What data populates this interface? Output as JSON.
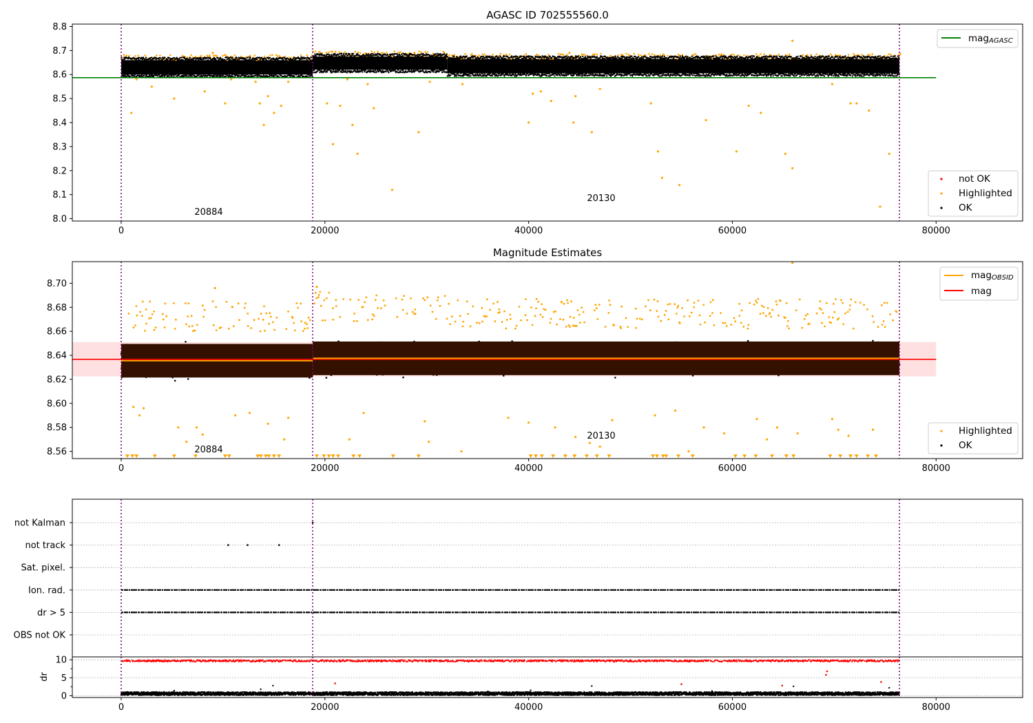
{
  "chart_data": [
    {
      "type": "scatter",
      "title": "AGASC ID 702555560.0",
      "xlim": [
        -4800,
        88500
      ],
      "ylim": [
        7.99,
        8.81
      ],
      "xticks": [
        "0",
        "20000",
        "40000",
        "60000",
        "80000"
      ],
      "yticks": [
        "8.0",
        "8.1",
        "8.2",
        "8.3",
        "8.4",
        "8.5",
        "8.6",
        "8.7",
        "8.8"
      ],
      "obs_boundaries": [
        0,
        18800,
        76400
      ],
      "segment_labels": [
        {
          "text": "20884",
          "x": 9400,
          "y": 8.01
        },
        {
          "text": "20130",
          "x": 47600,
          "y": 8.07
        }
      ],
      "hline": {
        "name": "mag_AGASC",
        "y": 8.587,
        "x": [
          -4800,
          80000
        ],
        "color": "#008000"
      },
      "bands": [
        {
          "x": [
            0,
            18800
          ],
          "ymin": 8.6,
          "ymax": 8.66
        },
        {
          "x": [
            18800,
            32000
          ],
          "ymin": 8.62,
          "ymax": 8.675
        },
        {
          "x": [
            32000,
            76400
          ],
          "ymin": 8.605,
          "ymax": 8.665
        }
      ],
      "highlighted_points": [
        [
          1000,
          8.44
        ],
        [
          1500,
          8.58
        ],
        [
          3000,
          8.55
        ],
        [
          5200,
          8.5
        ],
        [
          8200,
          8.53
        ],
        [
          10200,
          8.48
        ],
        [
          10800,
          8.58
        ],
        [
          13200,
          8.57
        ],
        [
          13600,
          8.48
        ],
        [
          14000,
          8.39
        ],
        [
          14400,
          8.51
        ],
        [
          15000,
          8.44
        ],
        [
          15700,
          8.47
        ],
        [
          16400,
          8.57
        ],
        [
          20200,
          8.48
        ],
        [
          20800,
          8.31
        ],
        [
          21500,
          8.47
        ],
        [
          22200,
          8.58
        ],
        [
          22700,
          8.39
        ],
        [
          23200,
          8.27
        ],
        [
          24200,
          8.56
        ],
        [
          24800,
          8.46
        ],
        [
          26600,
          8.12
        ],
        [
          29200,
          8.36
        ],
        [
          30300,
          8.57
        ],
        [
          33500,
          8.56
        ],
        [
          40000,
          8.4
        ],
        [
          40400,
          8.52
        ],
        [
          41200,
          8.53
        ],
        [
          42200,
          8.49
        ],
        [
          44400,
          8.4
        ],
        [
          44600,
          8.51
        ],
        [
          46200,
          8.36
        ],
        [
          47000,
          8.54
        ],
        [
          52000,
          8.48
        ],
        [
          52700,
          8.28
        ],
        [
          53100,
          8.17
        ],
        [
          54800,
          8.14
        ],
        [
          57400,
          8.41
        ],
        [
          60400,
          8.28
        ],
        [
          61600,
          8.47
        ],
        [
          62800,
          8.44
        ],
        [
          65200,
          8.27
        ],
        [
          65900,
          8.21
        ],
        [
          69800,
          8.56
        ],
        [
          71600,
          8.48
        ],
        [
          72200,
          8.48
        ],
        [
          73400,
          8.45
        ],
        [
          74500,
          8.05
        ],
        [
          75400,
          8.27
        ],
        [
          65900,
          8.74
        ],
        [
          28800,
          8.69
        ],
        [
          9000,
          8.69
        ],
        [
          44000,
          8.69
        ]
      ],
      "legend": {
        "lines": [
          "mag_AGASC"
        ],
        "markers": [
          "not OK",
          "Highlighted",
          "OK"
        ]
      },
      "colors": {
        "ok": "#000000",
        "highlighted": "#FFA500",
        "not_ok": "#FF0000",
        "agasc_line": "#008000"
      }
    },
    {
      "type": "scatter",
      "title": "Magnitude Estimates",
      "xlim": [
        -4800,
        88500
      ],
      "ylim": [
        8.554,
        8.718
      ],
      "xticks": [
        "0",
        "20000",
        "40000",
        "60000",
        "80000"
      ],
      "yticks": [
        "8.56",
        "8.58",
        "8.60",
        "8.62",
        "8.64",
        "8.66",
        "8.68",
        "8.70"
      ],
      "obs_boundaries": [
        0,
        18800,
        76400
      ],
      "segment_labels": [
        {
          "text": "20884",
          "x": 9400,
          "y": 8.558
        },
        {
          "text": "20130",
          "x": 47600,
          "y": 8.571
        }
      ],
      "mag_line": {
        "name": "mag",
        "y": 8.6367,
        "x": [
          -4800,
          80000
        ],
        "band": [
          8.6225,
          8.651
        ],
        "color": "#FF0000"
      },
      "mag_obsid": [
        {
          "x": [
            0,
            18800
          ],
          "y": 8.6355
        },
        {
          "x": [
            18800,
            76400
          ],
          "y": 8.6375
        }
      ],
      "dark_bands": [
        {
          "x": [
            0,
            18800
          ],
          "ymin": 8.6215,
          "ymax": 8.6495
        },
        {
          "x": [
            18800,
            76400
          ],
          "ymin": 8.6235,
          "ymax": 8.6515
        }
      ],
      "highlighted_points": [
        [
          1200,
          8.597
        ],
        [
          1800,
          8.59
        ],
        [
          2200,
          8.596
        ],
        [
          5600,
          8.58
        ],
        [
          6400,
          8.568
        ],
        [
          7400,
          8.58
        ],
        [
          8000,
          8.574
        ],
        [
          11200,
          8.59
        ],
        [
          12600,
          8.592
        ],
        [
          14400,
          8.583
        ],
        [
          16000,
          8.57
        ],
        [
          16400,
          8.588
        ],
        [
          22400,
          8.57
        ],
        [
          23800,
          8.592
        ],
        [
          29800,
          8.585
        ],
        [
          30200,
          8.568
        ],
        [
          33400,
          8.56
        ],
        [
          38000,
          8.588
        ],
        [
          40000,
          8.584
        ],
        [
          42600,
          8.58
        ],
        [
          44600,
          8.572
        ],
        [
          46000,
          8.567
        ],
        [
          47000,
          8.564
        ],
        [
          48200,
          8.586
        ],
        [
          52400,
          8.59
        ],
        [
          54400,
          8.594
        ],
        [
          55700,
          8.56
        ],
        [
          57200,
          8.58
        ],
        [
          59200,
          8.575
        ],
        [
          62400,
          8.587
        ],
        [
          63400,
          8.57
        ],
        [
          64400,
          8.58
        ],
        [
          66400,
          8.575
        ],
        [
          69800,
          8.587
        ],
        [
          70400,
          8.578
        ],
        [
          71400,
          8.573
        ],
        [
          73800,
          8.578
        ],
        [
          65900,
          8.717
        ],
        [
          19200,
          8.697
        ],
        [
          9200,
          8.696
        ]
      ],
      "clipped_low_x": [
        600,
        1100,
        1500,
        3300,
        5200,
        7300,
        10200,
        10600,
        13400,
        13700,
        14200,
        14500,
        15000,
        15500,
        19200,
        19900,
        20400,
        20800,
        21300,
        22800,
        23400,
        26700,
        29200,
        40200,
        40700,
        41300,
        42400,
        43600,
        44500,
        45700,
        46700,
        47900,
        52200,
        52600,
        53200,
        53500,
        54700,
        56100,
        60300,
        61200,
        62300,
        63900,
        65300,
        66000,
        69600,
        70600,
        71600,
        72200,
        73300,
        74100
      ],
      "legend": {
        "lines": [
          "mag_OBSID",
          "mag"
        ],
        "markers": [
          "Highlighted",
          "OK"
        ]
      },
      "colors": {
        "ok": "#000000",
        "highlighted": "#FFA500",
        "mag_obsid": "#FFA500",
        "mag": "#FF0000",
        "dark_band": "#331000"
      }
    },
    {
      "type": "scatter",
      "title": "",
      "xlim": [
        -4800,
        88500
      ],
      "xticks": [
        "0",
        "20000",
        "40000",
        "60000",
        "80000"
      ],
      "obs_boundaries": [
        0,
        18800,
        76400
      ],
      "categories": [
        "not Kalman",
        "not track",
        "Sat. pixel.",
        "Ion. rad.",
        "dr > 5",
        "OBS not OK"
      ],
      "flag_rows": [
        {
          "label": "not Kalman",
          "x": [
            18800
          ]
        },
        {
          "label": "not track",
          "x": [
            10500,
            12400,
            15500
          ]
        },
        {
          "label": "Sat. pixel.",
          "x": []
        },
        {
          "label": "Ion. rad.",
          "ranges": [
            [
              0,
              76400
            ]
          ]
        },
        {
          "label": "dr > 5",
          "ranges": [
            [
              0,
              76400
            ]
          ]
        },
        {
          "label": "OBS not OK",
          "x": []
        }
      ],
      "dr_ylabel": "dr",
      "dr_yticks": [
        "0",
        "5",
        "10"
      ],
      "dr_ylim": [
        -0.5,
        10.8
      ],
      "dr_red_level": 9.7,
      "dr_ok_level": 0.4,
      "dr_outliers": [
        [
          5200,
          1.4
        ],
        [
          13700,
          1.8
        ],
        [
          14900,
          2.8
        ],
        [
          21000,
          3.4
        ],
        [
          40200,
          1.5
        ],
        [
          46200,
          2.7
        ],
        [
          55000,
          3.2
        ],
        [
          64900,
          2.8
        ],
        [
          66000,
          2.6
        ],
        [
          69200,
          5.8
        ],
        [
          69300,
          6.8
        ],
        [
          74600,
          3.8
        ],
        [
          75400,
          2.2
        ],
        [
          36000,
          1.2
        ],
        [
          58000,
          1.3
        ]
      ],
      "colors": {
        "ok": "#000000",
        "dr_red": "#FF0000",
        "boundary": "#800080"
      }
    }
  ]
}
